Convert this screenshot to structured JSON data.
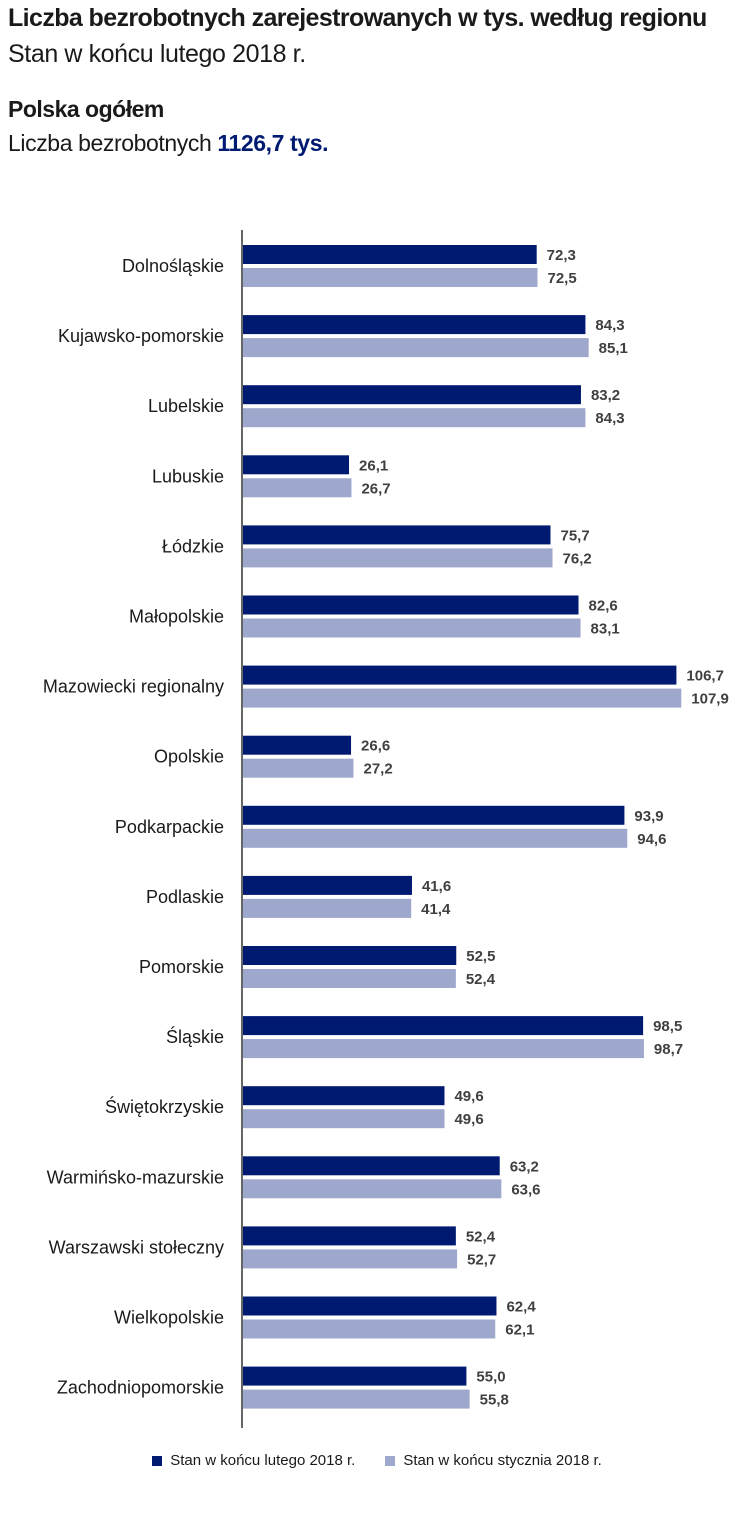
{
  "header": {
    "title": "Liczba bezrobotnych zarejestrowanych w tys. według regionu",
    "subtitle": "Stan w końcu lutego 2018 r."
  },
  "summary": {
    "heading": "Polska ogółem",
    "label": "Liczba bezrobotnych",
    "value": "1126,7 tys."
  },
  "chart_data": {
    "type": "bar",
    "orientation": "horizontal",
    "categories": [
      "Dolnośląskie",
      "Kujawsko-pomorskie",
      "Lubelskie",
      "Lubuskie",
      "Łódzkie",
      "Małopolskie",
      "Mazowiecki regionalny",
      "Opolskie",
      "Podkarpackie",
      "Podlaskie",
      "Pomorskie",
      "Śląskie",
      "Świętokrzyskie",
      "Warmińsko-mazurskie",
      "Warszawski stołeczny",
      "Wielkopolskie",
      "Zachodniopomorskie"
    ],
    "series": [
      {
        "name": "Stan w końcu lutego 2018 r.",
        "color": "#001a72",
        "values": [
          72.3,
          84.3,
          83.2,
          26.1,
          75.7,
          82.6,
          106.7,
          26.6,
          93.9,
          41.6,
          52.5,
          98.5,
          49.6,
          63.2,
          52.4,
          62.4,
          55.0
        ],
        "labels": [
          "72,3",
          "84,3",
          "83,2",
          "26,1",
          "75,7",
          "82,6",
          "106,7",
          "26,6",
          "93,9",
          "41,6",
          "52,5",
          "98,5",
          "49,6",
          "63,2",
          "52,4",
          "62,4",
          "55,0"
        ]
      },
      {
        "name": "Stan w końcu stycznia 2018 r.",
        "color": "#9ea8cc",
        "values": [
          72.5,
          85.1,
          84.3,
          26.7,
          76.2,
          83.1,
          107.9,
          27.2,
          94.6,
          41.4,
          52.4,
          98.7,
          49.6,
          63.6,
          52.7,
          62.1,
          55.8
        ],
        "labels": [
          "72,5",
          "85,1",
          "84,3",
          "26,7",
          "76,2",
          "83,1",
          "107,9",
          "27,2",
          "94,6",
          "41,4",
          "52,4",
          "98,7",
          "49,6",
          "63,6",
          "52,7",
          "62,1",
          "55,8"
        ]
      }
    ],
    "xlim": [
      0,
      110
    ],
    "legend_position": "bottom",
    "grid": false
  }
}
